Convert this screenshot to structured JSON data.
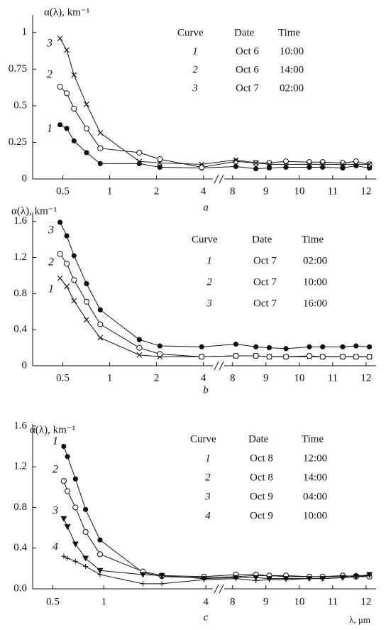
{
  "chart_data": [
    {
      "type": "line",
      "letter": "a",
      "ylabel": "α(λ), km⁻¹",
      "ylim": [
        0,
        1.12
      ],
      "yticks": [
        0,
        0.25,
        0.5,
        0.75,
        1
      ],
      "x_axis": [
        {
          "scale": "log",
          "xlim": [
            0.32,
            4.6
          ],
          "xticks": [
            0.5,
            1,
            2,
            4
          ]
        },
        {
          "scale": "linear",
          "xlim": [
            7.75,
            12.3
          ],
          "xticks": [
            8,
            9,
            10,
            11,
            12
          ]
        }
      ],
      "x": [
        0.48,
        0.53,
        0.59,
        0.71,
        0.87,
        1.55,
        2.1,
        3.9,
        8.1,
        8.7,
        9.1,
        9.6,
        10.3,
        10.7,
        11.3,
        11.7,
        12.1
      ],
      "series": [
        {
          "name": "1",
          "marker": "filled-circle",
          "color": "#111",
          "values": [
            0.37,
            0.345,
            0.26,
            0.18,
            0.105,
            0.105,
            0.08,
            0.075,
            0.085,
            0.07,
            0.075,
            0.08,
            0.08,
            0.08,
            0.075,
            0.09,
            0.075
          ]
        },
        {
          "name": "2",
          "marker": "open-circle",
          "color": "#111",
          "values": [
            0.63,
            0.585,
            0.48,
            0.345,
            0.21,
            0.18,
            0.135,
            0.08,
            0.12,
            0.11,
            0.11,
            0.12,
            0.115,
            0.115,
            0.11,
            0.12,
            0.1
          ]
        },
        {
          "name": "3",
          "marker": "cross",
          "color": "#111",
          "values": [
            0.96,
            0.88,
            0.71,
            0.51,
            0.315,
            0.12,
            0.11,
            0.1,
            0.13,
            0.11,
            0.1,
            0.1,
            0.1,
            0.1,
            0.1,
            0.1,
            0.1
          ]
        }
      ],
      "legend_table": {
        "header": [
          "Curve",
          "Date",
          "Time"
        ],
        "rows": [
          [
            "1",
            "Oct 6",
            "10:00"
          ],
          [
            "2",
            "Oct 6",
            "14:00"
          ],
          [
            "3",
            "Oct 7",
            "02:00"
          ]
        ]
      }
    },
    {
      "type": "line",
      "letter": "b",
      "ylabel": "α(λ), km⁻¹",
      "ylim": [
        0,
        1.7
      ],
      "yticks": [
        0,
        0.4,
        0.8,
        1.2,
        1.6
      ],
      "x_axis": [
        {
          "scale": "log",
          "xlim": [
            0.32,
            4.6
          ],
          "xticks": [
            0.5,
            1,
            2,
            4
          ]
        },
        {
          "scale": "linear",
          "xlim": [
            7.75,
            12.3
          ],
          "xticks": [
            8,
            9,
            10,
            11,
            12
          ]
        }
      ],
      "x": [
        0.48,
        0.53,
        0.59,
        0.71,
        0.87,
        1.55,
        2.1,
        3.9,
        8.1,
        8.7,
        9.1,
        9.6,
        10.3,
        10.7,
        11.3,
        11.7,
        12.1
      ],
      "series": [
        {
          "name": "1",
          "marker": "cross",
          "color": "#111",
          "values": [
            0.97,
            0.88,
            0.72,
            0.51,
            0.31,
            0.12,
            0.1,
            0.1,
            0.11,
            0.11,
            0.1,
            0.1,
            0.1,
            0.1,
            0.1,
            0.1,
            0.1
          ]
        },
        {
          "name": "2",
          "marker": "open-circle",
          "color": "#111",
          "values": [
            1.24,
            1.13,
            0.95,
            0.71,
            0.46,
            0.2,
            0.13,
            0.1,
            0.11,
            0.11,
            0.1,
            0.1,
            0.11,
            0.1,
            0.1,
            0.1,
            0.1
          ]
        },
        {
          "name": "3",
          "marker": "filled-circle",
          "color": "#111",
          "values": [
            1.59,
            1.44,
            1.22,
            0.91,
            0.62,
            0.29,
            0.22,
            0.21,
            0.24,
            0.21,
            0.2,
            0.19,
            0.21,
            0.21,
            0.21,
            0.22,
            0.21
          ]
        }
      ],
      "legend_table": {
        "header": [
          "Curve",
          "Date",
          "Time"
        ],
        "rows": [
          [
            "1",
            "Oct 7",
            "02:00"
          ],
          [
            "2",
            "Oct 7",
            "10:00"
          ],
          [
            "3",
            "Oct 7",
            "16:00"
          ]
        ]
      }
    },
    {
      "type": "line",
      "letter": "c",
      "ylabel": "α(λ), km⁻¹",
      "xlabel": "λ, μm",
      "ylim": [
        0,
        1.62
      ],
      "yticks": [
        {
          "value": 0,
          "label": "0.0"
        },
        0.4,
        0.8,
        1.2,
        1.6
      ],
      "x_axis": [
        {
          "scale": "log",
          "xlim": [
            0.38,
            4.4
          ],
          "xticks": [
            0.5,
            1,
            4
          ]
        },
        {
          "scale": "linear",
          "xlim": [
            7.75,
            12.3
          ],
          "xticks": [
            8,
            9,
            10,
            11,
            12
          ]
        }
      ],
      "x": [
        0.58,
        0.61,
        0.68,
        0.78,
        0.95,
        1.7,
        2.2,
        3.9,
        8.1,
        8.7,
        9.1,
        9.6,
        10.3,
        10.7,
        11.3,
        11.7,
        12.1
      ],
      "series": [
        {
          "name": "1",
          "marker": "filled-circle",
          "color": "#111",
          "values": [
            1.4,
            1.3,
            1.08,
            0.78,
            0.48,
            0.16,
            0.12,
            0.11,
            0.12,
            0.13,
            0.13,
            0.12,
            0.12,
            0.12,
            0.12,
            0.13,
            0.13
          ]
        },
        {
          "name": "2",
          "marker": "open-circle",
          "color": "#111",
          "values": [
            1.06,
            0.96,
            0.8,
            0.56,
            0.34,
            0.17,
            0.13,
            0.12,
            0.14,
            0.14,
            0.13,
            0.13,
            0.12,
            0.12,
            0.13,
            0.12,
            0.12
          ]
        },
        {
          "name": "3",
          "marker": "triangle-down",
          "color": "#111",
          "values": [
            0.69,
            0.61,
            0.44,
            0.3,
            0.18,
            0.14,
            0.13,
            0.1,
            0.11,
            0.11,
            0.1,
            0.1,
            0.1,
            0.1,
            0.11,
            0.12,
            0.14
          ]
        },
        {
          "name": "4",
          "marker": "plus",
          "color": "#111",
          "values": [
            0.32,
            0.3,
            0.27,
            0.22,
            0.14,
            0.05,
            0.05,
            0.09,
            0.1,
            0.08,
            0.09,
            0.09,
            0.1,
            0.1,
            0.11,
            0.12,
            0.13
          ]
        }
      ],
      "legend_table": {
        "header": [
          "Curve",
          "Date",
          "Time"
        ],
        "rows": [
          [
            "1",
            "Oct 8",
            "12:00"
          ],
          [
            "2",
            "Oct 8",
            "14:00"
          ],
          [
            "3",
            "Oct 9",
            "04:00"
          ],
          [
            "4",
            "Oct 9",
            "10:00"
          ]
        ]
      }
    }
  ]
}
